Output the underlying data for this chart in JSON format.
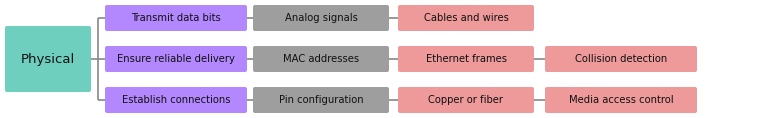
{
  "background_color": "#ffffff",
  "root_label": "Physical",
  "root_color": "#6ecfbf",
  "root_text_color": "#111111",
  "rows": [
    {
      "boxes": [
        {
          "label": "Transmit data bits",
          "color": "#b388ff"
        },
        {
          "label": "Analog signals",
          "color": "#9e9e9e"
        },
        {
          "label": "Cables and wires",
          "color": "#ef9a9a"
        }
      ]
    },
    {
      "boxes": [
        {
          "label": "Ensure reliable delivery",
          "color": "#b388ff"
        },
        {
          "label": "MAC addresses",
          "color": "#9e9e9e"
        },
        {
          "label": "Ethernet frames",
          "color": "#ef9a9a"
        },
        {
          "label": "Collision detection",
          "color": "#ef9a9a"
        }
      ]
    },
    {
      "boxes": [
        {
          "label": "Establish connections",
          "color": "#b388ff"
        },
        {
          "label": "Pin configuration",
          "color": "#9e9e9e"
        },
        {
          "label": "Copper or fiber",
          "color": "#ef9a9a"
        },
        {
          "label": "Media access control",
          "color": "#ef9a9a"
        }
      ]
    }
  ],
  "line_color": "#888888",
  "line_width": 1.2,
  "fig_width": 7.68,
  "fig_height": 1.18,
  "dpi": 100
}
